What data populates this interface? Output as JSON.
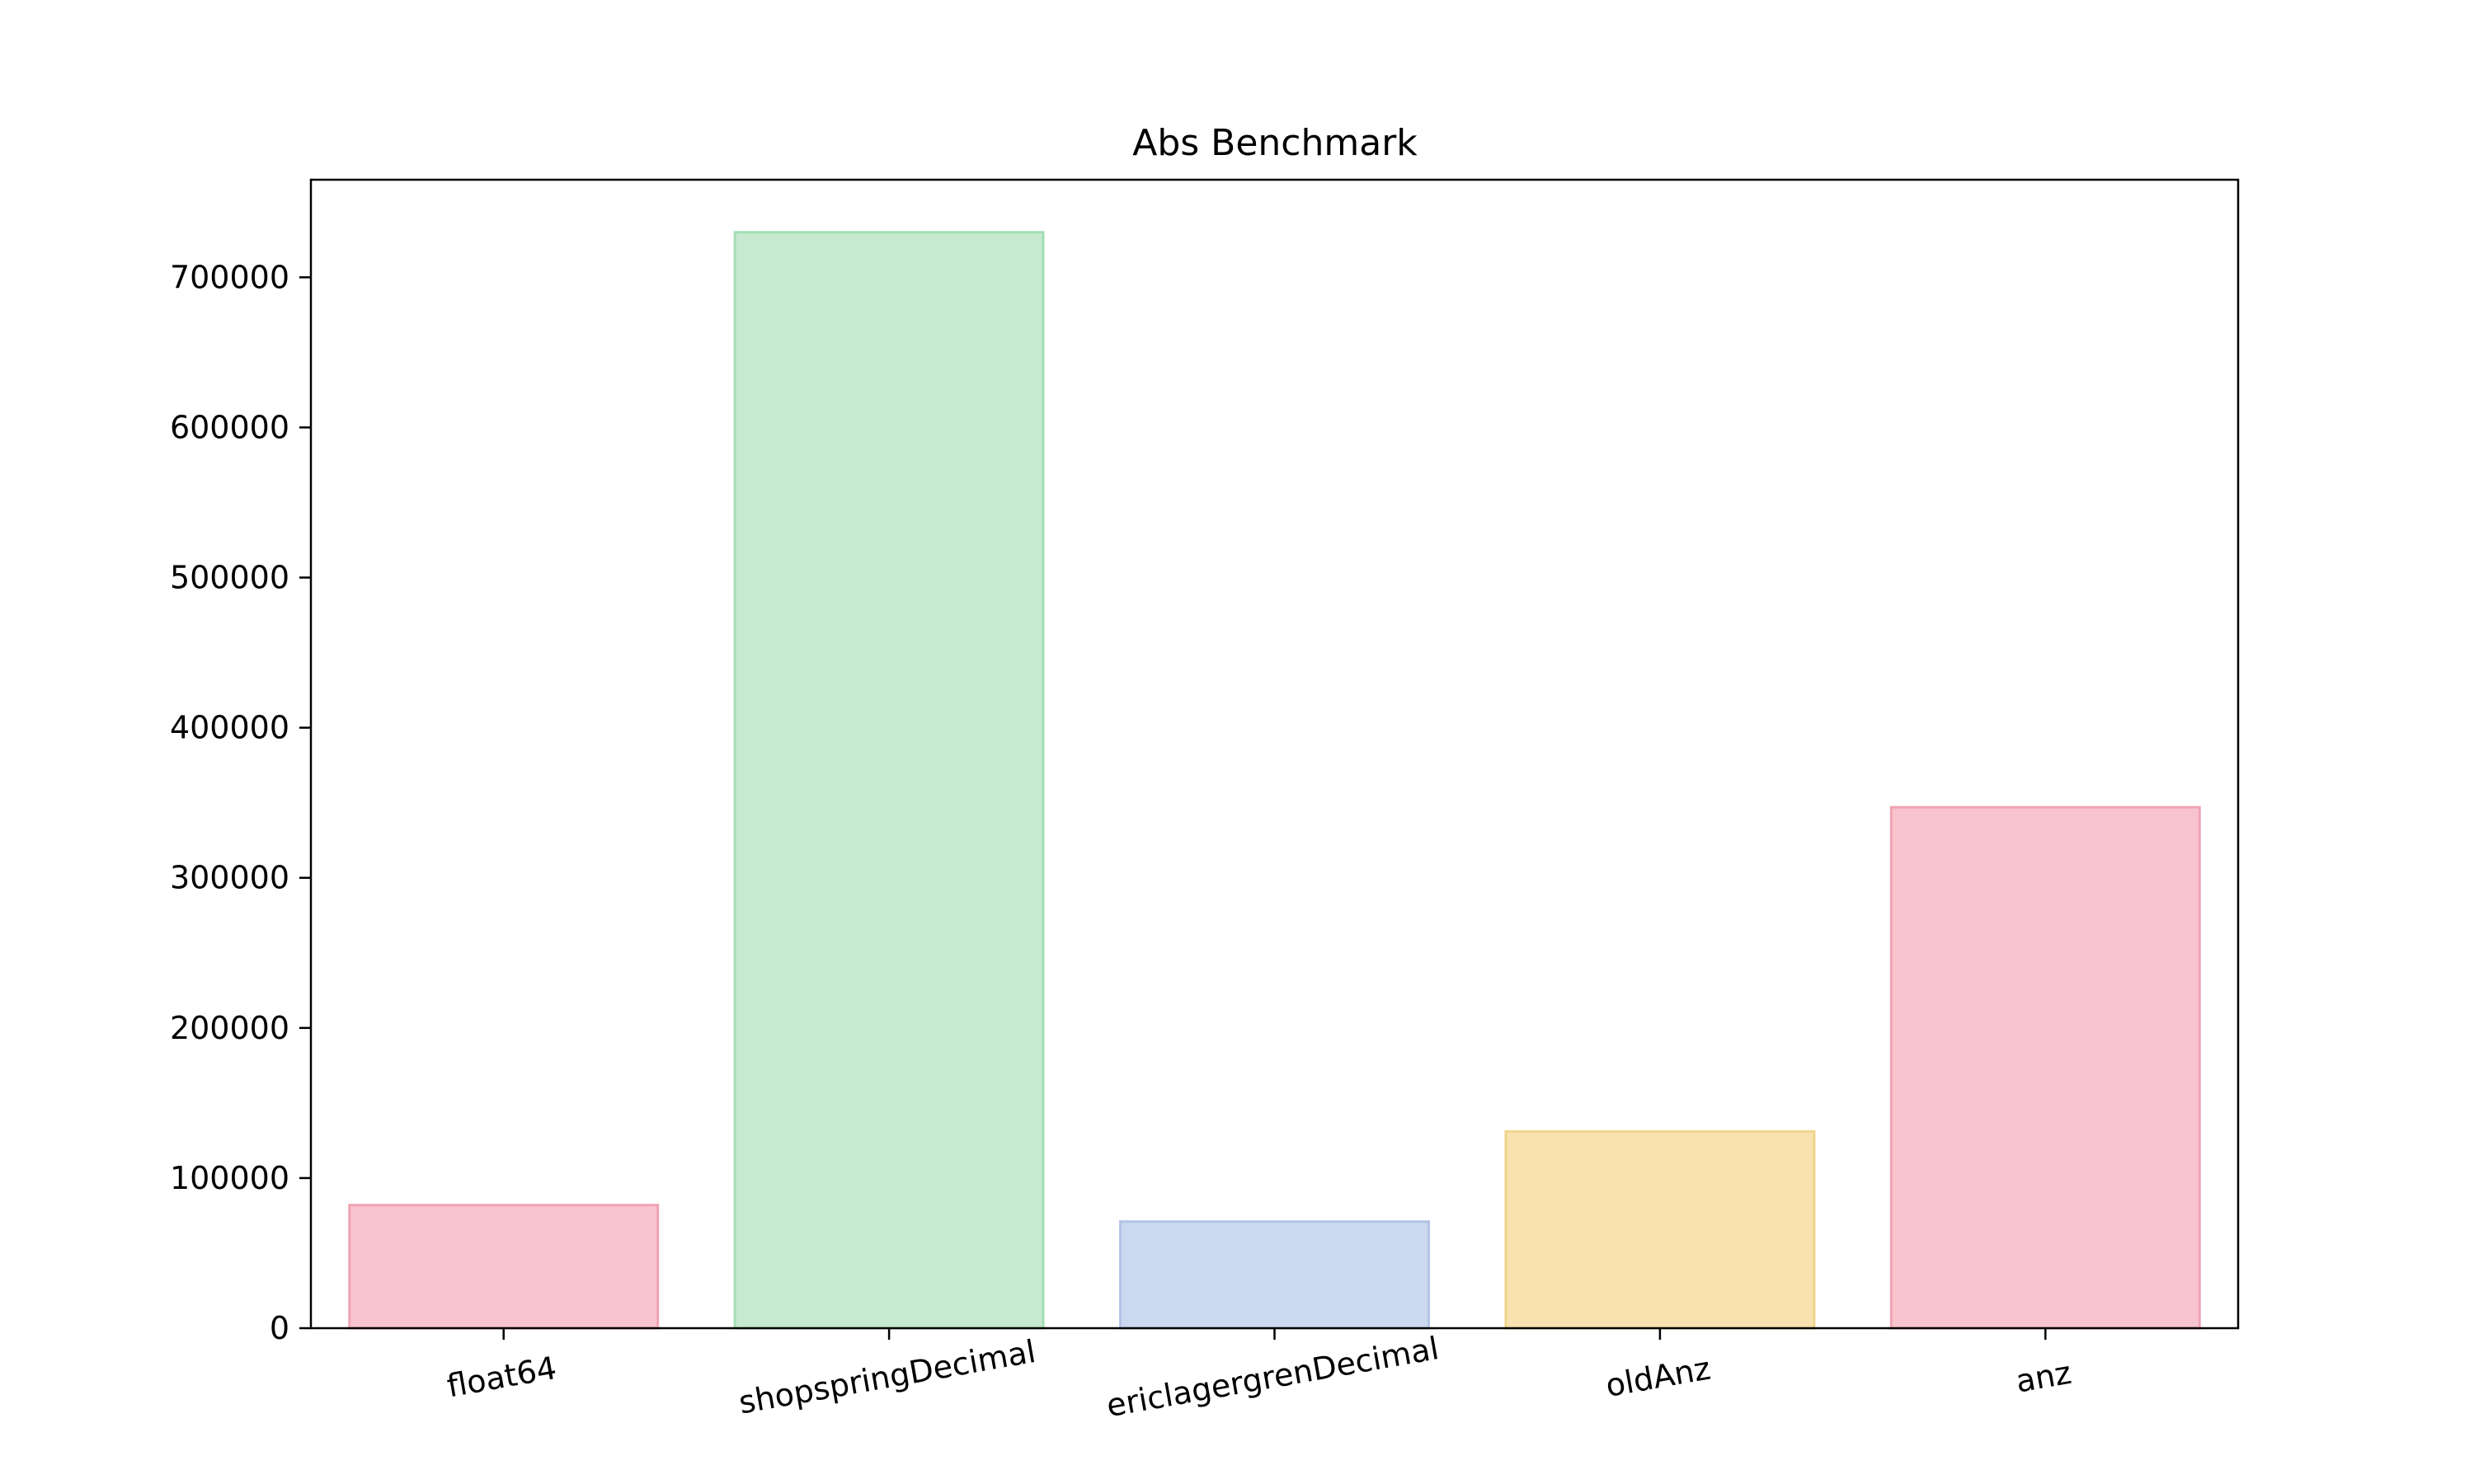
{
  "chart_data": {
    "type": "bar",
    "title": "Abs Benchmark",
    "xlabel": "",
    "ylabel": "",
    "categories": [
      "float64",
      "shopspringDecimal",
      "ericlagergrenDecimal",
      "oldAnz",
      "anz"
    ],
    "values": [
      82000,
      730000,
      71000,
      131000,
      347000
    ],
    "colors": [
      "#f7c4ce",
      "#c6e9d0",
      "#ccd8ef",
      "#f7e2b0",
      "#f7c4ce"
    ],
    "edge_colors": [
      "#f0a3b3",
      "#a3deb3",
      "#b3c4e6",
      "#f0d48a",
      "#f0a3b3"
    ],
    "ylim": [
      0,
      765000
    ],
    "yticks": [
      0,
      100000,
      200000,
      300000,
      400000,
      500000,
      600000,
      700000
    ],
    "ytick_labels": [
      "0",
      "100000",
      "200000",
      "300000",
      "400000",
      "500000",
      "600000",
      "700000"
    ],
    "grid": false,
    "legend": "none"
  }
}
